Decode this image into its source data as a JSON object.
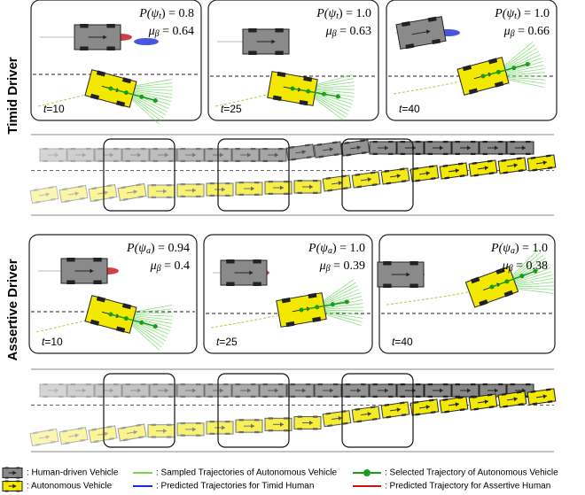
{
  "symbols": {
    "p_open": "P(ψ",
    "p_close": ") = ",
    "mu": "μ",
    "mu_sub": "β",
    "eq": " = ",
    "t": "t"
  },
  "rows": [
    {
      "label": "Timid Driver",
      "panels": [
        {
          "p_sub": "t",
          "p_value": "0.8",
          "mu_value": "0.64",
          "time": "=10"
        },
        {
          "p_sub": "t",
          "p_value": "1.0",
          "mu_value": "0.63",
          "time": "=25"
        },
        {
          "p_sub": "t",
          "p_value": "1.0",
          "mu_value": "0.66",
          "time": "=40"
        }
      ]
    },
    {
      "label": "Assertive Driver",
      "panels": [
        {
          "p_sub": "a",
          "p_value": "0.94",
          "mu_value": "0.4",
          "time": "=10"
        },
        {
          "p_sub": "a",
          "p_value": "1.0",
          "mu_value": "0.39",
          "time": "=25"
        },
        {
          "p_sub": "a",
          "p_value": "1.0",
          "mu_value": "0.38",
          "time": "=40"
        }
      ]
    }
  ],
  "legend": [
    ": Human-driven Vehicle",
    ": Autonomous Vehicle",
    ": Sampled Trajectories of Autonomous Vehicle",
    ": Predicted Trajectories for Timid Human",
    ": Selected Trajectory of Autonomous Vehicle",
    ": Predicted Trajectory for Assertive Human"
  ]
}
